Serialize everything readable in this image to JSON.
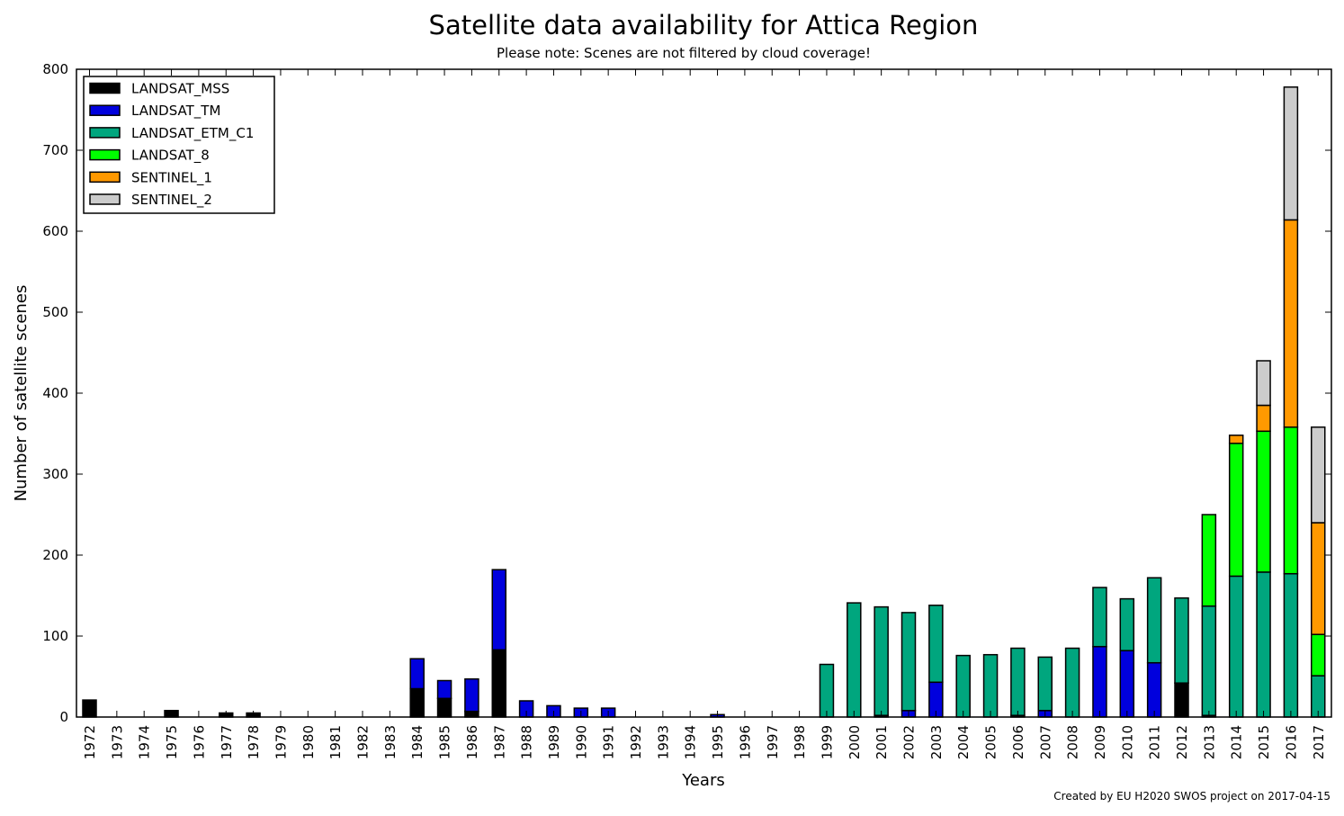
{
  "chart_data": {
    "type": "bar",
    "stacked": true,
    "title": "Satellite data availability for Attica Region",
    "subtitle": "Please note: Scenes are not filtered by cloud coverage!",
    "xlabel": "Years",
    "ylabel": "Number of satellite scenes",
    "ylim": [
      0,
      800
    ],
    "yticks": [
      0,
      100,
      200,
      300,
      400,
      500,
      600,
      700,
      800
    ],
    "grid": false,
    "legend_position": "top-left",
    "footnote": "Created by EU H2020 SWOS project on 2017-04-15",
    "categories": [
      "1972",
      "1973",
      "1974",
      "1975",
      "1976",
      "1977",
      "1978",
      "1979",
      "1980",
      "1981",
      "1982",
      "1983",
      "1984",
      "1985",
      "1986",
      "1987",
      "1988",
      "1989",
      "1990",
      "1991",
      "1992",
      "1993",
      "1994",
      "1995",
      "1996",
      "1997",
      "1998",
      "1999",
      "2000",
      "2001",
      "2002",
      "2003",
      "2004",
      "2005",
      "2006",
      "2007",
      "2008",
      "2009",
      "2010",
      "2011",
      "2012",
      "2013",
      "2014",
      "2015",
      "2016",
      "2017"
    ],
    "series": [
      {
        "name": "LANDSAT_MSS",
        "color": "#000000",
        "values": [
          21,
          0,
          0,
          8,
          0,
          5,
          5,
          0,
          0,
          0,
          0,
          0,
          35,
          23,
          7,
          83,
          0,
          0,
          0,
          0,
          0,
          0,
          0,
          0,
          0,
          0,
          0,
          0,
          0,
          2,
          0,
          0,
          0,
          0,
          2,
          0,
          0,
          0,
          0,
          0,
          42,
          2,
          0,
          0,
          0,
          0
        ]
      },
      {
        "name": "LANDSAT_TM",
        "color": "#0000dd",
        "values": [
          0,
          0,
          0,
          0,
          0,
          0,
          0,
          0,
          0,
          0,
          0,
          0,
          37,
          22,
          40,
          99,
          20,
          14,
          11,
          11,
          0,
          0,
          0,
          3,
          0,
          0,
          0,
          0,
          0,
          0,
          8,
          43,
          0,
          0,
          0,
          8,
          0,
          87,
          82,
          67,
          0,
          0,
          0,
          0,
          0,
          0
        ]
      },
      {
        "name": "LANDSAT_ETM_C1",
        "color": "#00a67e",
        "values": [
          0,
          0,
          0,
          0,
          0,
          0,
          0,
          0,
          0,
          0,
          0,
          0,
          0,
          0,
          0,
          0,
          0,
          0,
          0,
          0,
          0,
          0,
          0,
          0,
          0,
          0,
          0,
          65,
          141,
          134,
          121,
          95,
          76,
          77,
          83,
          66,
          85,
          73,
          64,
          105,
          105,
          135,
          174,
          179,
          177,
          51
        ]
      },
      {
        "name": "LANDSAT_8",
        "color": "#00ff00",
        "values": [
          0,
          0,
          0,
          0,
          0,
          0,
          0,
          0,
          0,
          0,
          0,
          0,
          0,
          0,
          0,
          0,
          0,
          0,
          0,
          0,
          0,
          0,
          0,
          0,
          0,
          0,
          0,
          0,
          0,
          0,
          0,
          0,
          0,
          0,
          0,
          0,
          0,
          0,
          0,
          0,
          0,
          113,
          164,
          174,
          181,
          51
        ]
      },
      {
        "name": "SENTINEL_1",
        "color": "#ff9900",
        "values": [
          0,
          0,
          0,
          0,
          0,
          0,
          0,
          0,
          0,
          0,
          0,
          0,
          0,
          0,
          0,
          0,
          0,
          0,
          0,
          0,
          0,
          0,
          0,
          0,
          0,
          0,
          0,
          0,
          0,
          0,
          0,
          0,
          0,
          0,
          0,
          0,
          0,
          0,
          0,
          0,
          0,
          0,
          10,
          32,
          256,
          138
        ]
      },
      {
        "name": "SENTINEL_2",
        "color": "#cccccc",
        "values": [
          0,
          0,
          0,
          0,
          0,
          0,
          0,
          0,
          0,
          0,
          0,
          0,
          0,
          0,
          0,
          0,
          0,
          0,
          0,
          0,
          0,
          0,
          0,
          0,
          0,
          0,
          0,
          0,
          0,
          0,
          0,
          0,
          0,
          0,
          0,
          0,
          0,
          0,
          0,
          0,
          0,
          0,
          0,
          55,
          164,
          118
        ]
      }
    ]
  }
}
